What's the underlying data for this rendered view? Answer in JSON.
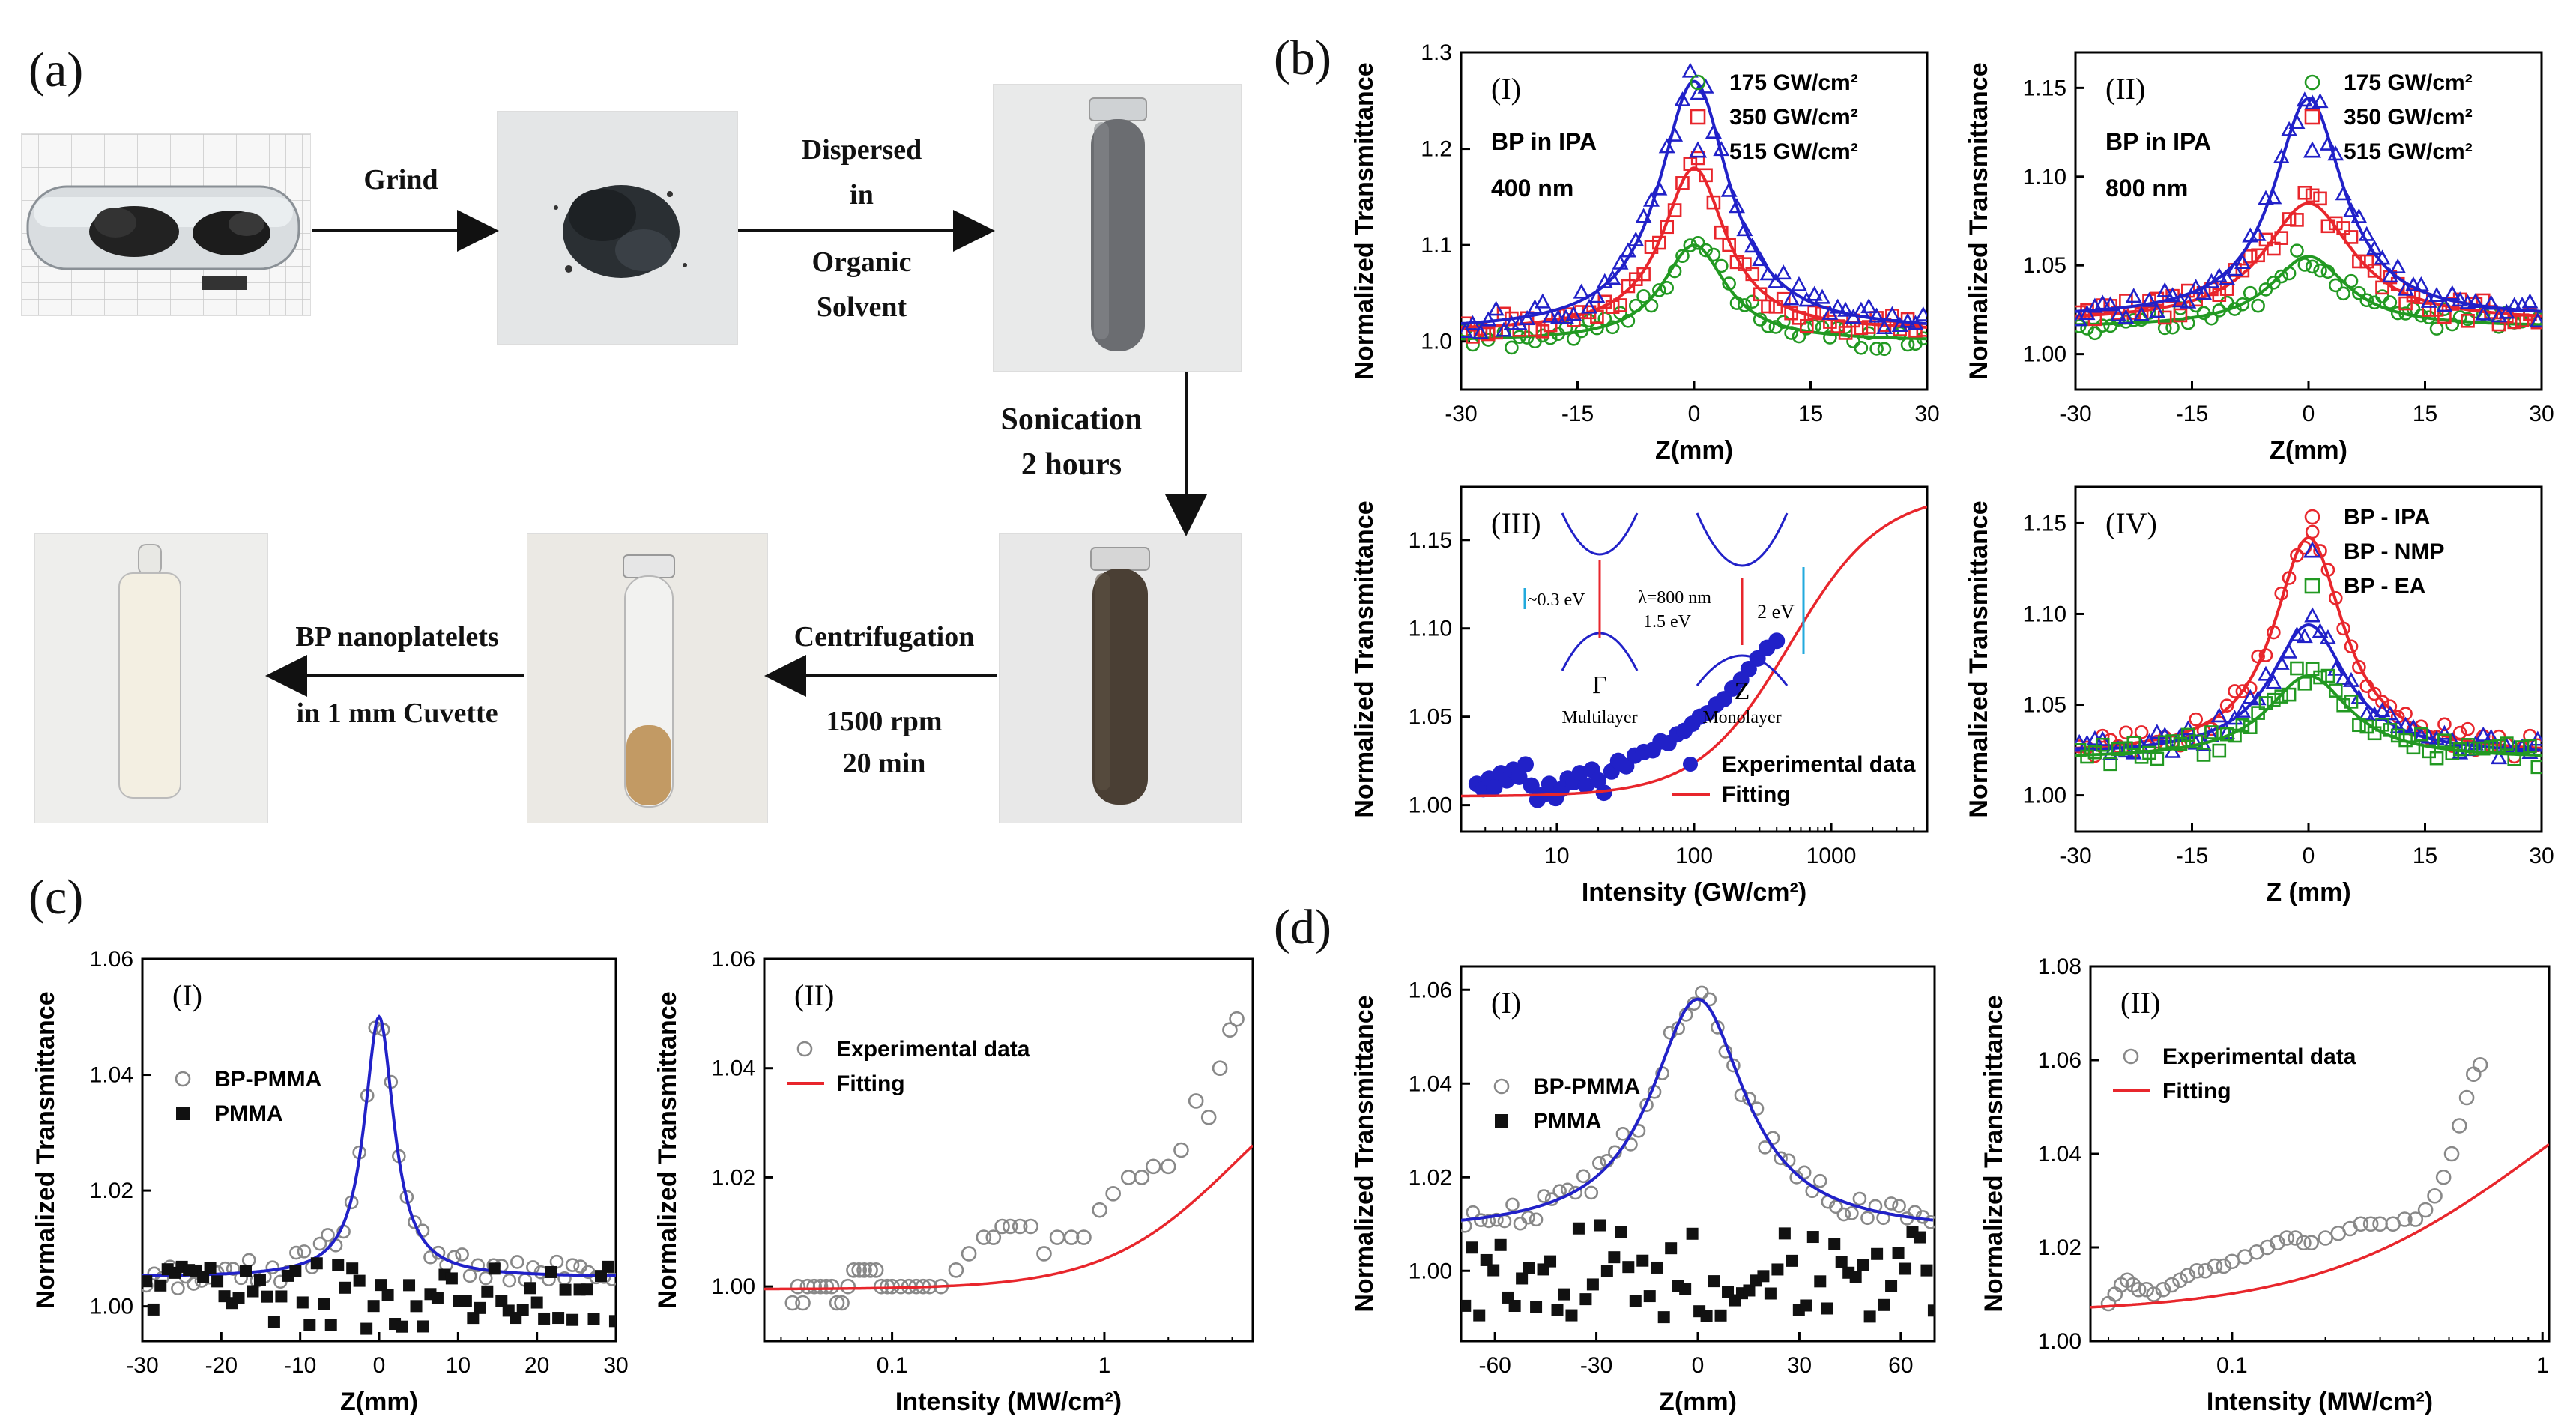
{
  "figure": {
    "panel_labels": {
      "a": "(a)",
      "b": "(b)",
      "c": "(c)",
      "d": "(d)"
    },
    "schematic": {
      "steps": {
        "grind": "Grind",
        "dispersed_1": "Dispersed",
        "dispersed_2": "in",
        "dispersed_3": "Organic",
        "dispersed_4": "Solvent",
        "sonication_1": "Sonication",
        "sonication_2": "2 hours",
        "centrifugation_1": "Centrifugation",
        "centrifugation_2": "1500 rpm",
        "centrifugation_3": "20 min",
        "cuvette_1": "BP nanoplatelets",
        "cuvette_2": "in 1 mm Cuvette"
      }
    },
    "inset": {
      "gamma": "Γ",
      "z": "Z",
      "multilayer": "Multilayer",
      "monolayer": "Monolayer",
      "gap_multi": "~0.3 eV",
      "gap_mono": "2 eV",
      "lambda": "λ=800 nm",
      "photon": "1.5 eV"
    }
  },
  "colors": {
    "green": "#229922",
    "red": "#e8262c",
    "blue": "#2121c8",
    "black": "#111111",
    "gray": "#888888"
  },
  "chart_data": [
    {
      "id": "b1",
      "type": "scatter",
      "panel": "(I)",
      "annotations": [
        "BP in IPA",
        "400 nm"
      ],
      "xlabel": "Z(mm)",
      "ylabel": "Normalized Transmittance",
      "xlim": [
        -30,
        30
      ],
      "ylim": [
        0.95,
        1.3
      ],
      "xticks": [
        -30,
        -15,
        0,
        15,
        30
      ],
      "yticks": [
        1.0,
        1.1,
        1.2,
        1.3
      ],
      "ytick_decimals": 1,
      "legend_position": "top-right",
      "series": [
        {
          "name": "175 GW/cm²",
          "marker": "circle",
          "color": "#229922",
          "fit": {
            "peak": 0.1,
            "width": 5,
            "base": 1.0
          }
        },
        {
          "name": "350 GW/cm²",
          "marker": "square",
          "color": "#e8262c",
          "fit": {
            "peak": 0.17,
            "width": 5,
            "base": 1.01
          }
        },
        {
          "name": "515 GW/cm²",
          "marker": "triangle",
          "color": "#2121c8",
          "fit": {
            "peak": 0.26,
            "width": 5.5,
            "base": 1.01
          }
        }
      ]
    },
    {
      "id": "b2",
      "type": "scatter",
      "panel": "(II)",
      "annotations": [
        "BP in IPA",
        "800 nm"
      ],
      "xlabel": "Z(mm)",
      "ylabel": "Normalized Transmittance",
      "xlim": [
        -30,
        30
      ],
      "ylim": [
        0.98,
        1.17
      ],
      "xticks": [
        -30,
        -15,
        0,
        15,
        30
      ],
      "yticks": [
        1.0,
        1.05,
        1.1,
        1.15
      ],
      "ytick_decimals": 2,
      "legend_position": "top-right",
      "series": [
        {
          "name": "175 GW/cm²",
          "marker": "circle",
          "color": "#229922",
          "fit": {
            "peak": 0.04,
            "width": 6,
            "base": 1.015
          }
        },
        {
          "name": "350 GW/cm²",
          "marker": "square",
          "color": "#e8262c",
          "fit": {
            "peak": 0.067,
            "width": 7,
            "base": 1.018
          }
        },
        {
          "name": "515 GW/cm²",
          "marker": "triangle",
          "color": "#2121c8",
          "fit": {
            "peak": 0.124,
            "width": 5.5,
            "base": 1.02
          }
        }
      ]
    },
    {
      "id": "b3",
      "type": "scatter",
      "panel": "(III)",
      "xlabel": "Intensity (GW/cm²)",
      "ylabel": "Normalized Transmittance",
      "xscale": "log",
      "xlim": [
        2,
        5000
      ],
      "ylim": [
        0.985,
        1.18
      ],
      "xticks": [
        10,
        100,
        1000
      ],
      "yticks": [
        1.0,
        1.05,
        1.1,
        1.15
      ],
      "ytick_decimals": 2,
      "legend_position": "bottom-right",
      "series": [
        {
          "name": "Experimental data",
          "marker": "filled-circle",
          "color": "#2121c8",
          "points": [
            [
              2.6,
              1.012
            ],
            [
              2.9,
              1.009
            ],
            [
              3.2,
              1.015
            ],
            [
              3.5,
              1.01
            ],
            [
              3.9,
              1.018
            ],
            [
              4.3,
              1.014
            ],
            [
              4.8,
              1.02
            ],
            [
              5.3,
              1.016
            ],
            [
              5.9,
              1.023
            ],
            [
              6.5,
              1.011
            ],
            [
              7.2,
              1.003
            ],
            [
              8.0,
              1.006
            ],
            [
              8.8,
              1.012
            ],
            [
              9.8,
              1.004
            ],
            [
              10.8,
              1.009
            ],
            [
              12,
              1.015
            ],
            [
              13.3,
              1.013
            ],
            [
              14.7,
              1.018
            ],
            [
              16.3,
              1.011
            ],
            [
              18,
              1.02
            ],
            [
              20,
              1.014
            ],
            [
              22,
              1.007
            ],
            [
              25,
              1.019
            ],
            [
              28,
              1.025
            ],
            [
              32,
              1.022
            ],
            [
              37,
              1.028
            ],
            [
              43,
              1.03
            ],
            [
              50,
              1.031
            ],
            [
              57,
              1.036
            ],
            [
              65,
              1.035
            ],
            [
              75,
              1.04
            ],
            [
              85,
              1.042
            ],
            [
              97,
              1.046
            ],
            [
              110,
              1.05
            ],
            [
              125,
              1.052
            ],
            [
              145,
              1.057
            ],
            [
              165,
              1.06
            ],
            [
              190,
              1.066
            ],
            [
              220,
              1.071
            ],
            [
              250,
              1.077
            ],
            [
              290,
              1.083
            ],
            [
              340,
              1.089
            ],
            [
              400,
              1.093
            ]
          ]
        },
        {
          "name": "Fitting",
          "marker": "line",
          "color": "#e8262c",
          "fit": {
            "base": 1.005,
            "amp": 0.172,
            "isat": 500,
            "power": 1.3
          }
        }
      ]
    },
    {
      "id": "b4",
      "type": "scatter",
      "panel": "(IV)",
      "xlabel": "Z (mm)",
      "ylabel": "Normalized Transmittance",
      "xlim": [
        -30,
        30
      ],
      "ylim": [
        0.98,
        1.17
      ],
      "xticks": [
        -30,
        -15,
        0,
        15,
        30
      ],
      "yticks": [
        1.0,
        1.05,
        1.1,
        1.15
      ],
      "ytick_decimals": 2,
      "legend_position": "top-right",
      "series": [
        {
          "name": "BP - IPA",
          "marker": "circle",
          "color": "#e8262c",
          "fit": {
            "peak": 0.12,
            "width": 5.5,
            "base": 1.022
          }
        },
        {
          "name": "BP - NMP",
          "marker": "triangle",
          "color": "#2121c8",
          "fit": {
            "peak": 0.072,
            "width": 6,
            "base": 1.022
          }
        },
        {
          "name": "BP - EA",
          "marker": "square",
          "color": "#229922",
          "fit": {
            "peak": 0.046,
            "width": 6.5,
            "base": 1.02
          }
        }
      ]
    },
    {
      "id": "c1",
      "type": "scatter",
      "panel": "(I)",
      "xlabel": "Z(mm)",
      "ylabel": "Normalized Transmittance",
      "xlim": [
        -30,
        30
      ],
      "ylim": [
        0.994,
        1.06
      ],
      "xticks": [
        -30,
        -20,
        -10,
        0,
        10,
        20,
        30
      ],
      "yticks": [
        1.0,
        1.02,
        1.04,
        1.06
      ],
      "ytick_decimals": 2,
      "legend_position": "left",
      "series": [
        {
          "name": "BP-PMMA",
          "marker": "circle",
          "color": "#888888",
          "fit": {
            "peak": 0.045,
            "width": 2.3,
            "base": 1.005
          }
        },
        {
          "name": "PMMA",
          "marker": "filled-square",
          "color": "#111111"
        }
      ],
      "fit_color": "#2121c8"
    },
    {
      "id": "c2",
      "type": "scatter",
      "panel": "(II)",
      "xlabel": "Intensity (MW/cm²)",
      "ylabel": "Normalized Transmittance",
      "xscale": "log",
      "xlim": [
        0.025,
        5
      ],
      "ylim": [
        0.99,
        1.06
      ],
      "xticks": [
        0.1,
        1
      ],
      "yticks": [
        1.0,
        1.02,
        1.04,
        1.06
      ],
      "ytick_decimals": 2,
      "legend_position": "top-left",
      "series": [
        {
          "name": "Experimental data",
          "marker": "circle",
          "color": "#888888",
          "points": [
            [
              0.034,
              0.997
            ],
            [
              0.036,
              1.0
            ],
            [
              0.038,
              0.997
            ],
            [
              0.04,
              1.0
            ],
            [
              0.043,
              1.0
            ],
            [
              0.046,
              1.0
            ],
            [
              0.049,
              1.0
            ],
            [
              0.052,
              1.0
            ],
            [
              0.055,
              0.997
            ],
            [
              0.058,
              0.997
            ],
            [
              0.062,
              1.0
            ],
            [
              0.066,
              1.003
            ],
            [
              0.07,
              1.003
            ],
            [
              0.074,
              1.003
            ],
            [
              0.079,
              1.003
            ],
            [
              0.084,
              1.003
            ],
            [
              0.089,
              1.0
            ],
            [
              0.095,
              1.0
            ],
            [
              0.1,
              1.0
            ],
            [
              0.11,
              1.0
            ],
            [
              0.12,
              1.0
            ],
            [
              0.13,
              1.0
            ],
            [
              0.14,
              1.0
            ],
            [
              0.15,
              1.0
            ],
            [
              0.17,
              1.0
            ],
            [
              0.2,
              1.003
            ],
            [
              0.23,
              1.006
            ],
            [
              0.27,
              1.009
            ],
            [
              0.3,
              1.009
            ],
            [
              0.33,
              1.011
            ],
            [
              0.36,
              1.011
            ],
            [
              0.4,
              1.011
            ],
            [
              0.45,
              1.011
            ],
            [
              0.52,
              1.006
            ],
            [
              0.6,
              1.009
            ],
            [
              0.7,
              1.009
            ],
            [
              0.8,
              1.009
            ],
            [
              0.95,
              1.014
            ],
            [
              1.1,
              1.017
            ],
            [
              1.3,
              1.02
            ],
            [
              1.5,
              1.02
            ],
            [
              1.7,
              1.022
            ],
            [
              2.0,
              1.022
            ],
            [
              2.3,
              1.025
            ],
            [
              2.7,
              1.034
            ],
            [
              3.1,
              1.031
            ],
            [
              3.5,
              1.04
            ],
            [
              3.9,
              1.047
            ],
            [
              4.2,
              1.049
            ]
          ]
        },
        {
          "name": "Fitting",
          "marker": "line",
          "color": "#e8262c",
          "fit": {
            "base": 0.9995,
            "amp": 0.047,
            "isat": 4.2,
            "power": 1.4
          }
        }
      ]
    },
    {
      "id": "d1",
      "type": "scatter",
      "panel": "(I)",
      "xlabel": "Z(mm)",
      "ylabel": "Normalized Transmittance",
      "xlim": [
        -70,
        70
      ],
      "ylim": [
        0.985,
        1.065
      ],
      "xticks": [
        -60,
        -30,
        0,
        30,
        60
      ],
      "yticks": [
        1.0,
        1.02,
        1.04,
        1.06
      ],
      "ytick_decimals": 2,
      "legend_position": "left",
      "series": [
        {
          "name": "BP-PMMA",
          "marker": "circle",
          "color": "#888888",
          "fit": {
            "peak": 0.05,
            "width": 17,
            "base": 1.008
          }
        },
        {
          "name": "PMMA",
          "marker": "filled-square",
          "color": "#111111"
        }
      ],
      "fit_color": "#2121c8"
    },
    {
      "id": "d2",
      "type": "scatter",
      "panel": "(II)",
      "xlabel": "Intensity (MW/cm²)",
      "ylabel": "Normalized Transmittance",
      "xscale": "log",
      "xlim": [
        0.035,
        1.05
      ],
      "ylim": [
        1.0,
        1.08
      ],
      "xticks": [
        0.1,
        1
      ],
      "yticks": [
        1.0,
        1.02,
        1.04,
        1.06,
        1.08
      ],
      "ytick_decimals": 2,
      "legend_position": "top-left",
      "series": [
        {
          "name": "Experimental data",
          "marker": "circle",
          "color": "#888888",
          "points": [
            [
              0.04,
              1.008
            ],
            [
              0.042,
              1.01
            ],
            [
              0.044,
              1.012
            ],
            [
              0.046,
              1.013
            ],
            [
              0.048,
              1.012
            ],
            [
              0.05,
              1.011
            ],
            [
              0.053,
              1.011
            ],
            [
              0.056,
              1.01
            ],
            [
              0.06,
              1.011
            ],
            [
              0.064,
              1.012
            ],
            [
              0.068,
              1.013
            ],
            [
              0.072,
              1.014
            ],
            [
              0.077,
              1.015
            ],
            [
              0.082,
              1.015
            ],
            [
              0.088,
              1.016
            ],
            [
              0.094,
              1.016
            ],
            [
              0.1,
              1.017
            ],
            [
              0.11,
              1.018
            ],
            [
              0.12,
              1.019
            ],
            [
              0.13,
              1.02
            ],
            [
              0.14,
              1.021
            ],
            [
              0.15,
              1.022
            ],
            [
              0.16,
              1.022
            ],
            [
              0.17,
              1.021
            ],
            [
              0.18,
              1.021
            ],
            [
              0.2,
              1.022
            ],
            [
              0.22,
              1.023
            ],
            [
              0.24,
              1.024
            ],
            [
              0.26,
              1.025
            ],
            [
              0.28,
              1.025
            ],
            [
              0.3,
              1.025
            ],
            [
              0.33,
              1.025
            ],
            [
              0.36,
              1.026
            ],
            [
              0.39,
              1.026
            ],
            [
              0.42,
              1.028
            ],
            [
              0.45,
              1.031
            ],
            [
              0.48,
              1.035
            ],
            [
              0.51,
              1.04
            ],
            [
              0.54,
              1.046
            ],
            [
              0.57,
              1.052
            ],
            [
              0.6,
              1.057
            ],
            [
              0.63,
              1.059
            ]
          ]
        },
        {
          "name": "Fitting",
          "marker": "line",
          "color": "#e8262c",
          "fit": {
            "base": 1.006,
            "amp": 0.07,
            "isat": 1.0,
            "power": 1.2
          }
        }
      ]
    }
  ]
}
